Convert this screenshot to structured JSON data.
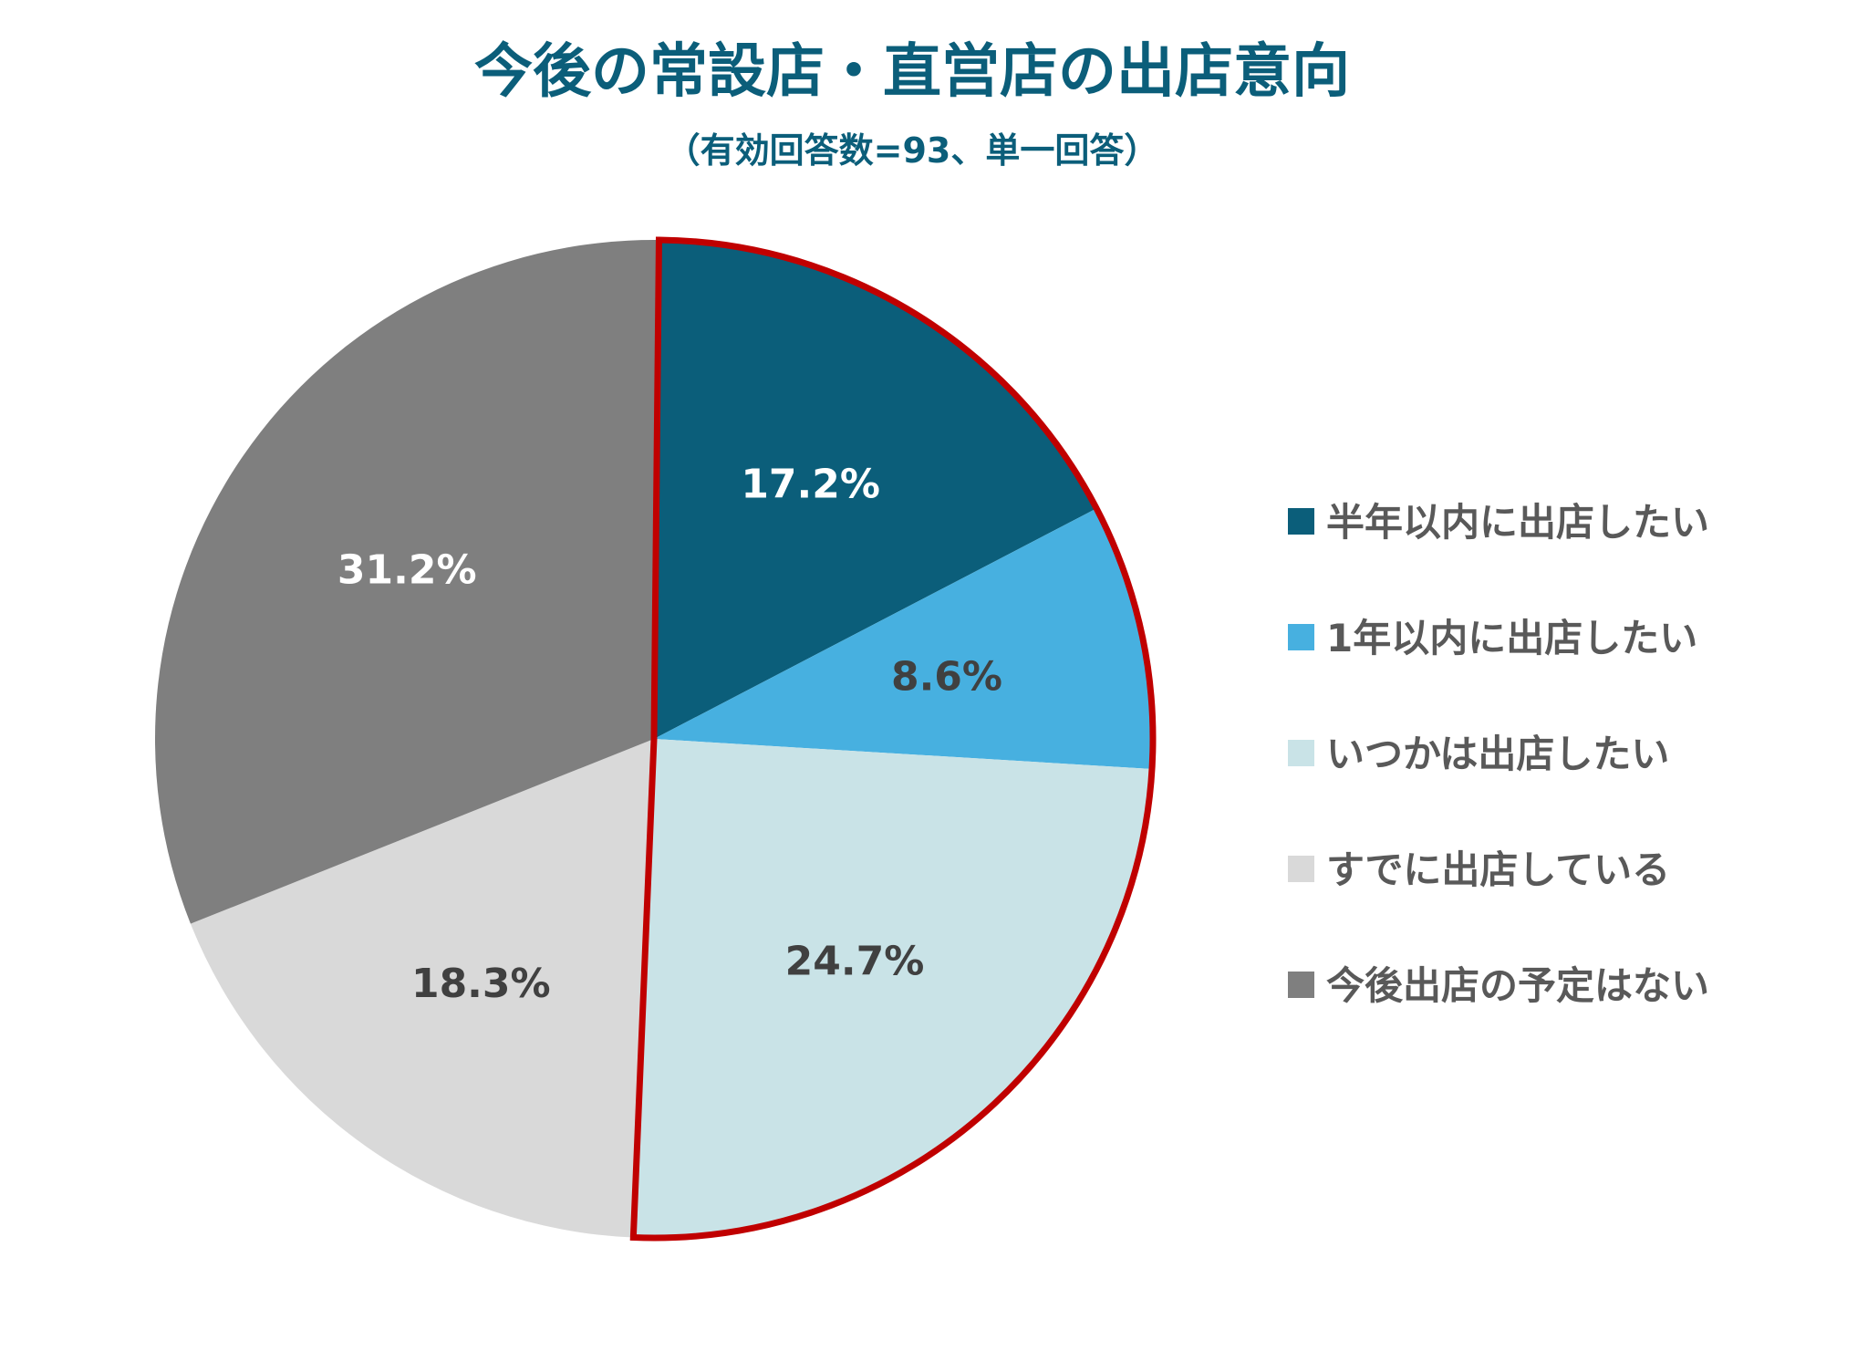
{
  "chart_data": {
    "type": "pie",
    "title": "今後の常設店・直営店の出店意向",
    "subtitle": "（有効回答数=93、単一回答）",
    "legend_position": "right",
    "start_angle": "top",
    "direction": "clockwise",
    "highlight": {
      "slices": [
        0,
        1,
        2
      ],
      "outline_color": "#c00000"
    },
    "series": [
      {
        "name": "半年以内に出店したい",
        "value": 17.2,
        "label": "17.2%",
        "color": "#0b5e7a",
        "label_color": "#ffffff"
      },
      {
        "name": "1年以内に出店したい",
        "value": 8.6,
        "label": "8.6%",
        "color": "#47b0e0",
        "label_color": "#404040"
      },
      {
        "name": "いつかは出店したい",
        "value": 24.7,
        "label": "24.7%",
        "color": "#c9e3e7",
        "label_color": "#404040"
      },
      {
        "name": "すでに出店している",
        "value": 18.3,
        "label": "18.3%",
        "color": "#d9d9d9",
        "label_color": "#404040"
      },
      {
        "name": "今後出店の予定はない",
        "value": 31.2,
        "label": "31.2%",
        "color": "#7f7f7f",
        "label_color": "#ffffff"
      }
    ]
  }
}
